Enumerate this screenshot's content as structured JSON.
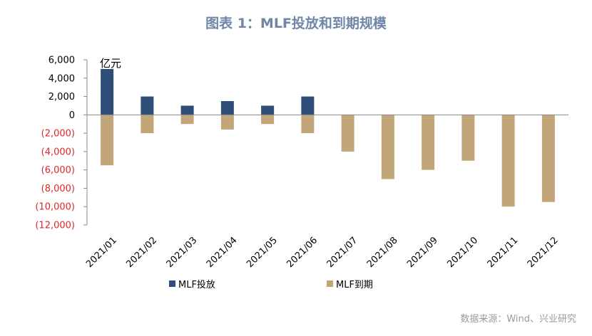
{
  "chart_data": {
    "type": "bar",
    "title": "图表 1：MLF投放和到期规模",
    "unit_label": "亿元",
    "source": "数据来源：Wind、兴业研究",
    "categories": [
      "2021/01",
      "2021/02",
      "2021/03",
      "2021/04",
      "2021/05",
      "2021/06",
      "2021/07",
      "2021/08",
      "2021/09",
      "2021/10",
      "2021/11",
      "2021/12"
    ],
    "series": [
      {
        "name": "MLF投放",
        "color": "#2e4e78",
        "values": [
          5000,
          2000,
          1000,
          1500,
          1000,
          2000,
          0,
          0,
          0,
          0,
          0,
          0
        ]
      },
      {
        "name": "MLF到期",
        "color": "#c2a67a",
        "values": [
          -5500,
          -2000,
          -1000,
          -1600,
          -1000,
          -2000,
          -4000,
          -7000,
          -6000,
          -5000,
          -10000,
          -9500
        ]
      }
    ],
    "ylim": [
      -12000,
      6000
    ],
    "yticks": [
      6000,
      4000,
      2000,
      0,
      -2000,
      -4000,
      -6000,
      -8000,
      -10000,
      -12000
    ],
    "ytick_labels": [
      "6,000",
      "4,000",
      "2,000",
      "0",
      "(2,000)",
      "(4,000)",
      "(6,000)",
      "(8,000)",
      "(10,000)",
      "(12,000)"
    ],
    "negative_tick_color": "#e0262b",
    "positive_tick_color": "#000000",
    "legend_position": "bottom",
    "grid": false
  }
}
